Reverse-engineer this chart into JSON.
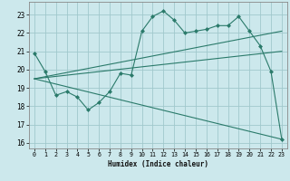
{
  "xlabel": "Humidex (Indice chaleur)",
  "ylabel": "",
  "bg_color": "#cce8ec",
  "grid_color": "#a0c8cc",
  "line_color": "#2a7a6a",
  "xlim": [
    -0.5,
    23.5
  ],
  "ylim": [
    15.7,
    23.7
  ],
  "yticks": [
    16,
    17,
    18,
    19,
    20,
    21,
    22,
    23
  ],
  "xticks": [
    0,
    1,
    2,
    3,
    4,
    5,
    6,
    7,
    8,
    9,
    10,
    11,
    12,
    13,
    14,
    15,
    16,
    17,
    18,
    19,
    20,
    21,
    22,
    23
  ],
  "series": [
    {
      "x": [
        0,
        1,
        2,
        3,
        4,
        5,
        6,
        7,
        8,
        9,
        10,
        11,
        12,
        13,
        14,
        15,
        16,
        17,
        18,
        19,
        20,
        21,
        22,
        23
      ],
      "y": [
        20.9,
        19.9,
        18.6,
        18.8,
        18.5,
        17.8,
        18.2,
        18.8,
        19.8,
        19.7,
        22.1,
        22.9,
        23.2,
        22.7,
        22.0,
        22.1,
        22.2,
        22.4,
        22.4,
        22.9,
        22.1,
        21.3,
        19.9,
        16.2
      ]
    },
    {
      "x": [
        0,
        23
      ],
      "y": [
        19.5,
        22.1
      ]
    },
    {
      "x": [
        0,
        23
      ],
      "y": [
        19.5,
        16.2
      ]
    },
    {
      "x": [
        0,
        23
      ],
      "y": [
        19.5,
        21.0
      ]
    }
  ]
}
